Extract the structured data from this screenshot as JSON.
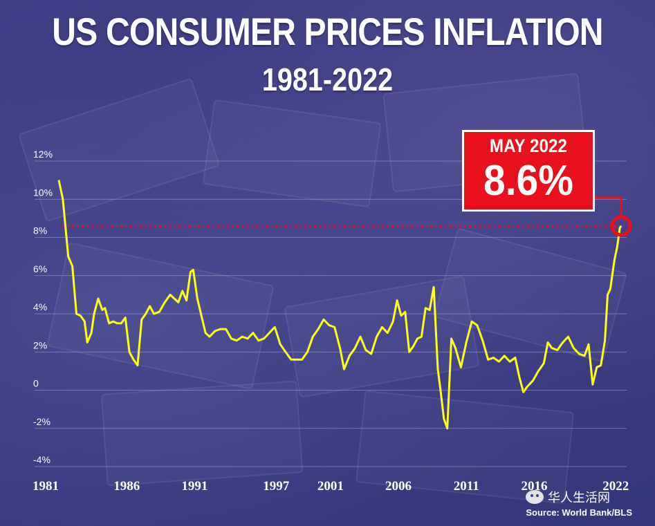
{
  "header": {
    "title": "US CONSUMER PRICES INFLATION",
    "subtitle": "1981-2022"
  },
  "callout": {
    "month": "MAY 2022",
    "value": "8.6%"
  },
  "source": "Source: World Bank/BLS",
  "watermark": "华人生活网",
  "colors": {
    "line": "#ffff1a",
    "callout": "#e8101a",
    "reference": "#e8101a",
    "grid": "#aab0dd"
  },
  "chart_data": {
    "type": "line",
    "title": "US CONSUMER PRICES INFLATION 1981-2022",
    "xlabel": "",
    "ylabel": "",
    "ylim": [
      -4,
      12
    ],
    "xlim": [
      1981,
      2022.8
    ],
    "y_ticks": [
      12,
      10,
      8,
      6,
      4,
      2,
      0,
      -2,
      -4
    ],
    "y_tick_labels": [
      "12%",
      "10%",
      "8%",
      "6%",
      "4%",
      "2%",
      "0",
      "-2%",
      "-4%"
    ],
    "x_ticks": [
      1981,
      1986,
      1991,
      1997,
      2001,
      2006,
      2011,
      2016,
      2022
    ],
    "x_tick_labels": [
      "1981",
      "1986",
      "1991",
      "1997",
      "2001",
      "2006",
      "2011",
      "2016",
      "2022"
    ],
    "grid": true,
    "reference_line": {
      "y": 8.6,
      "style": "dotted",
      "label": "MAY 2022 8.6%"
    },
    "highlight_point": {
      "x": 2022.4,
      "y": 8.6
    },
    "series": [
      {
        "name": "US CPI inflation",
        "x": [
          1981.0,
          1981.3,
          1981.7,
          1982.0,
          1982.3,
          1982.6,
          1982.9,
          1983.1,
          1983.4,
          1983.6,
          1983.9,
          1984.2,
          1984.4,
          1984.7,
          1985.0,
          1985.3,
          1985.6,
          1985.9,
          1986.2,
          1986.5,
          1986.8,
          1987.1,
          1987.4,
          1987.7,
          1988.0,
          1988.4,
          1988.8,
          1989.2,
          1989.5,
          1989.8,
          1990.1,
          1990.4,
          1990.7,
          1990.9,
          1991.2,
          1991.5,
          1991.8,
          1992.1,
          1992.5,
          1992.9,
          1993.3,
          1993.7,
          1994.1,
          1994.5,
          1994.9,
          1995.3,
          1995.7,
          1996.1,
          1996.5,
          1996.9,
          1997.3,
          1997.7,
          1998.1,
          1998.5,
          1998.9,
          1999.3,
          1999.7,
          2000.1,
          2000.5,
          2000.9,
          2001.3,
          2001.7,
          2002.0,
          2002.4,
          2002.8,
          2003.2,
          2003.6,
          2004.0,
          2004.4,
          2004.8,
          2005.2,
          2005.6,
          2005.9,
          2006.2,
          2006.5,
          2006.8,
          2007.1,
          2007.4,
          2007.7,
          2008.0,
          2008.3,
          2008.6,
          2008.9,
          2009.1,
          2009.35,
          2009.6,
          2009.9,
          2010.2,
          2010.6,
          2011.0,
          2011.4,
          2011.8,
          2012.2,
          2012.6,
          2013.0,
          2013.4,
          2013.8,
          2014.2,
          2014.6,
          2014.9,
          2015.2,
          2015.5,
          2015.9,
          2016.3,
          2016.7,
          2017.0,
          2017.3,
          2017.7,
          2018.1,
          2018.5,
          2018.9,
          2019.3,
          2019.7,
          2020.0,
          2020.3,
          2020.6,
          2020.9,
          2021.2,
          2021.4,
          2021.6,
          2021.9,
          2022.1,
          2022.3,
          2022.4
        ],
        "y": [
          11.0,
          10.0,
          7.0,
          6.5,
          4.0,
          3.9,
          3.6,
          2.5,
          3.0,
          4.0,
          4.8,
          4.2,
          4.3,
          3.5,
          3.6,
          3.5,
          3.5,
          3.8,
          2.0,
          1.6,
          1.3,
          3.7,
          4.0,
          4.4,
          4.0,
          4.1,
          4.6,
          5.0,
          4.8,
          4.6,
          5.2,
          4.7,
          6.2,
          6.3,
          4.8,
          3.9,
          3.0,
          2.8,
          3.1,
          3.2,
          3.2,
          2.7,
          2.6,
          2.8,
          2.7,
          3.0,
          2.6,
          2.7,
          3.0,
          3.3,
          2.4,
          2.0,
          1.6,
          1.6,
          1.6,
          2.0,
          2.8,
          3.2,
          3.7,
          3.4,
          3.3,
          2.2,
          1.1,
          1.8,
          2.2,
          2.8,
          2.1,
          1.9,
          2.8,
          3.3,
          3.0,
          3.6,
          4.7,
          3.9,
          4.1,
          2.0,
          2.3,
          2.7,
          2.8,
          4.3,
          4.2,
          5.4,
          1.1,
          0.0,
          -1.5,
          -2.0,
          2.7,
          2.2,
          1.2,
          2.5,
          3.6,
          3.4,
          2.6,
          1.6,
          1.7,
          1.5,
          1.8,
          1.5,
          1.7,
          0.7,
          -0.1,
          0.2,
          0.5,
          1.0,
          1.4,
          2.5,
          2.2,
          2.1,
          2.5,
          2.8,
          2.2,
          1.9,
          1.8,
          2.4,
          0.3,
          1.2,
          1.3,
          2.6,
          5.0,
          5.3,
          6.8,
          7.5,
          8.5,
          8.6
        ]
      }
    ]
  }
}
